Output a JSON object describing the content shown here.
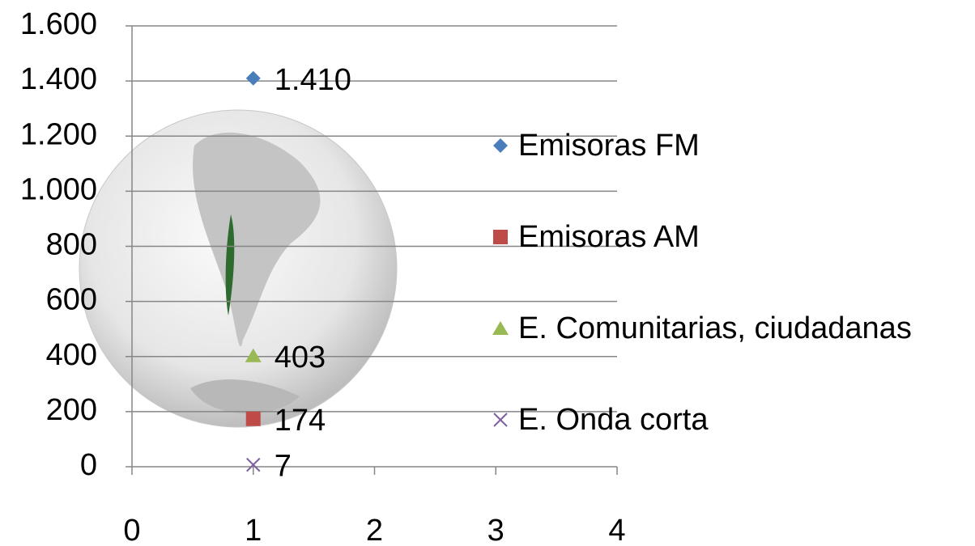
{
  "chart_data": {
    "type": "scatter",
    "xlim": [
      0,
      4
    ],
    "xticks": [
      0,
      1,
      2,
      3,
      4
    ],
    "ylim": [
      0,
      1600
    ],
    "yticks": [
      0,
      200,
      400,
      600,
      800,
      {
        "value": 1000,
        "label": "1.000"
      },
      {
        "value": 1200,
        "label": "1.200"
      },
      {
        "value": 1400,
        "label": "1.400"
      },
      {
        "value": 1600,
        "label": "1.600"
      }
    ],
    "grid": true,
    "legend": "right",
    "series": [
      {
        "name": "Emisoras FM",
        "color": "#4a7ebb",
        "marker": "diamond",
        "x": [
          1
        ],
        "values": [
          1410
        ],
        "value_labels": [
          "1.410"
        ]
      },
      {
        "name": "Emisoras AM",
        "color": "#be4b48",
        "marker": "square",
        "x": [
          1
        ],
        "values": [
          174
        ]
      },
      {
        "name": "E. Comunitarias, ciudadanas",
        "color": "#98b954",
        "marker": "triangle",
        "x": [
          1
        ],
        "values": [
          403
        ]
      },
      {
        "name": "E. Onda corta",
        "color": "#7d60a0",
        "marker": "x",
        "x": [
          1
        ],
        "values": [
          7
        ]
      }
    ]
  }
}
